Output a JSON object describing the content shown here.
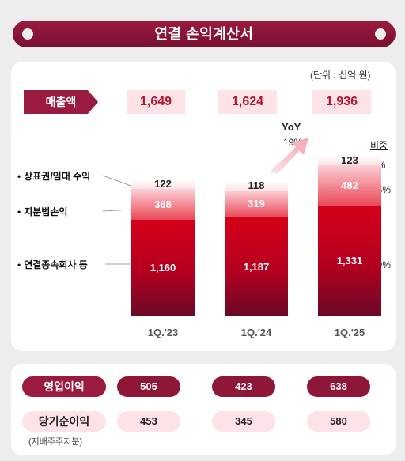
{
  "title": "연결 손익계산서",
  "unit": "(단위 : 십억 원)",
  "revenue": {
    "label": "매출액",
    "values": [
      "1,649",
      "1,624",
      "1,936"
    ]
  },
  "yoy": {
    "title": "YoY",
    "value": "19%"
  },
  "share_title": "비중",
  "shares": [
    "6%",
    "25%",
    "69%"
  ],
  "segment_labels": [
    "상표권/임대 수익",
    "지분법손익",
    "연결종속회사 등"
  ],
  "profit_rows": {
    "operating": {
      "label": "영업이익",
      "values": [
        "505",
        "423",
        "638"
      ]
    },
    "net": {
      "label": "당기순이익",
      "sublabel": "(지배주주지분)",
      "values": [
        "453",
        "345",
        "580"
      ]
    }
  },
  "colors": {
    "brand": "#9a1b3f",
    "consolidated": "#c8001e",
    "equity": "#f05a6a",
    "royalty": "#fde3e6"
  },
  "chart_data": {
    "type": "bar",
    "stacked": true,
    "categories": [
      "1Q.'23",
      "1Q.'24",
      "1Q.'25"
    ],
    "series": [
      {
        "name": "연결종속회사 등",
        "values": [
          1160,
          1187,
          1331
        ]
      },
      {
        "name": "지분법손익",
        "values": [
          368,
          319,
          482
        ]
      },
      {
        "name": "상표권/임대 수익",
        "values": [
          122,
          118,
          123
        ]
      }
    ],
    "series_labels": [
      [
        "1,160",
        "1,187",
        "1,331"
      ],
      [
        "368",
        "319",
        "482"
      ],
      [
        "122",
        "118",
        "123"
      ]
    ],
    "totals": [
      1649,
      1624,
      1936
    ],
    "grid": false
  }
}
